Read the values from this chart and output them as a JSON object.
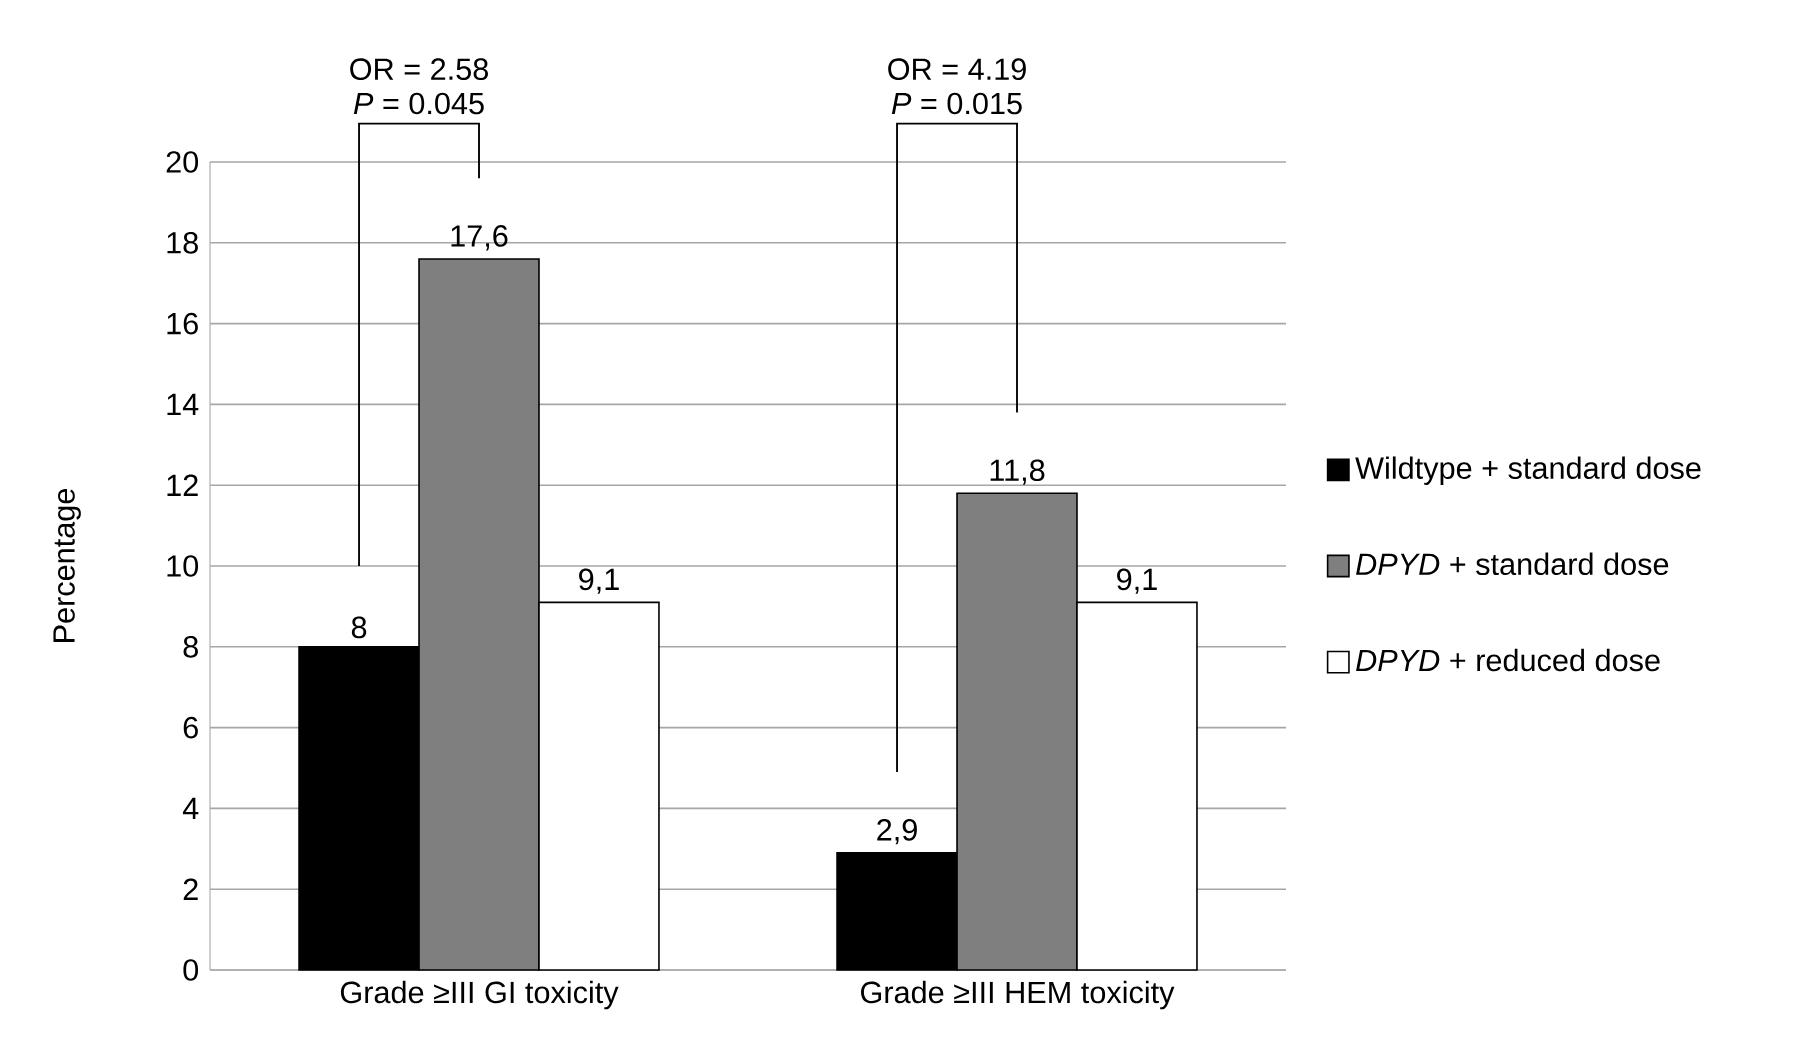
{
  "chart_data": {
    "type": "bar",
    "ylabel": "Percentage",
    "categories": [
      "Grade ≥III GI toxicity",
      "Grade ≥III HEM toxicity"
    ],
    "series": [
      {
        "name": "Wildtype + standard dose",
        "color": "#000000",
        "values": [
          8,
          2.9
        ],
        "value_labels": [
          "8",
          "2,9"
        ]
      },
      {
        "name": "*DPYD* + standard dose",
        "color": "#7f7f7f",
        "values": [
          17.6,
          11.8
        ],
        "value_labels": [
          "17,6",
          "11,8"
        ]
      },
      {
        "name": "*DPYD* + reduced dose",
        "color": "#ffffff",
        "values": [
          9.1,
          9.1
        ],
        "value_labels": [
          "9,1",
          "9,1"
        ]
      }
    ],
    "annotations": [
      "OR = 2.58",
      "*P* = 0.045",
      "OR = 4.19",
      "*P* = 0.015"
    ],
    "ylim": [
      0,
      20
    ],
    "yticks": [
      0,
      2,
      4,
      6,
      8,
      10,
      12,
      14,
      16,
      18,
      20
    ],
    "grid": "y",
    "legend": "right"
  }
}
